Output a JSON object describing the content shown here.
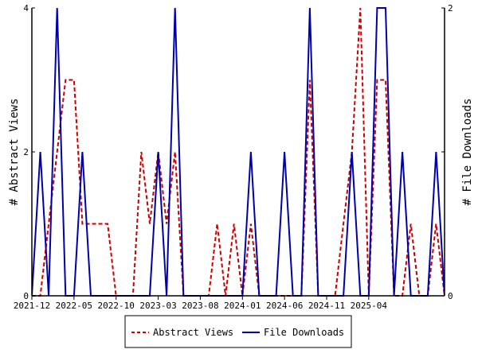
{
  "chart_data": {
    "type": "line",
    "ylabel_left": "# Abstract Views",
    "ylabel_right": "# File Downloads",
    "ylim_left": [
      0,
      4
    ],
    "ylim_right": [
      0,
      2
    ],
    "y_ticks_left": [
      "0",
      "2",
      "4"
    ],
    "y_ticks_right": [
      "0",
      "1",
      "2"
    ],
    "x_tick_labels": [
      "2021-12",
      "2022-05",
      "2022-10",
      "2023-03",
      "2023-08",
      "2024-01",
      "2024-06",
      "2024-11",
      "2025-04"
    ],
    "grid": false,
    "legend_position": "bottom",
    "series": [
      {
        "name": "Abstract Views",
        "axis": "left",
        "color": "#cc0000",
        "style": "dashed",
        "values": [
          0,
          0,
          1,
          2,
          3,
          3,
          1,
          1,
          1,
          1,
          0,
          0,
          0,
          2,
          1,
          2,
          1,
          2,
          0,
          0,
          0,
          0,
          1,
          0,
          1,
          0,
          1,
          0,
          0,
          0,
          0,
          0,
          0,
          3,
          0,
          0,
          0,
          1,
          2,
          4,
          0,
          3,
          3,
          0,
          0,
          1,
          0,
          0,
          1,
          0
        ]
      },
      {
        "name": "File Downloads",
        "axis": "right",
        "color": "#0000aa",
        "style": "solid",
        "values": [
          0,
          1,
          0,
          2,
          0,
          0,
          1,
          0,
          0,
          0,
          0,
          0,
          0,
          0,
          0,
          1,
          0,
          2,
          0,
          0,
          0,
          0,
          0,
          0,
          0,
          0,
          1,
          0,
          0,
          0,
          1,
          0,
          0,
          2,
          0,
          0,
          0,
          0,
          1,
          0,
          0,
          2,
          2,
          0,
          1,
          0,
          0,
          0,
          1,
          0
        ]
      }
    ]
  }
}
